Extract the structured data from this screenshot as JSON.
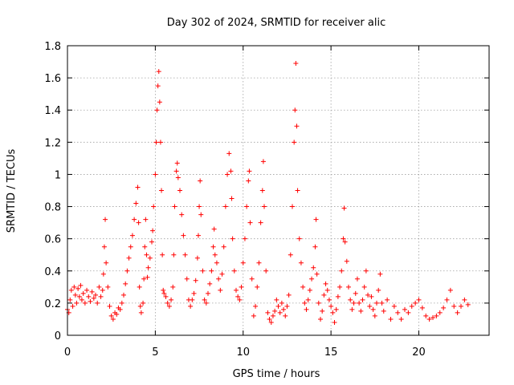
{
  "chart_data": {
    "type": "scatter",
    "title": "Day 302 of 2024, SRMTID for receiver alic",
    "xlabel": "GPS time / hours",
    "ylabel": "SRMTID / TECUs",
    "xlim": [
      0,
      24
    ],
    "ylim": [
      0,
      1.8
    ],
    "xticks": [
      0,
      5,
      10,
      15,
      20
    ],
    "xtick_labels": [
      "0",
      "5",
      "10",
      "15",
      "20"
    ],
    "yticks": [
      0,
      0.2,
      0.4,
      0.6,
      0.8,
      1.0,
      1.2,
      1.4,
      1.6,
      1.8
    ],
    "ytick_labels": [
      "0",
      "0.2",
      "0.4",
      "0.6",
      "0.8",
      "1",
      "1.2",
      "1.4",
      "1.6",
      "1.8"
    ],
    "grid": true,
    "marker": "+",
    "marker_color": "#ff0000",
    "series": [
      {
        "name": "SRMTID",
        "points": [
          [
            0.0,
            0.16
          ],
          [
            0.08,
            0.14
          ],
          [
            0.15,
            0.22
          ],
          [
            0.22,
            0.28
          ],
          [
            0.3,
            0.18
          ],
          [
            0.38,
            0.3
          ],
          [
            0.45,
            0.25
          ],
          [
            0.52,
            0.2
          ],
          [
            0.6,
            0.29
          ],
          [
            0.68,
            0.24
          ],
          [
            0.75,
            0.31
          ],
          [
            0.82,
            0.22
          ],
          [
            0.9,
            0.26
          ],
          [
            1.0,
            0.2
          ],
          [
            1.1,
            0.28
          ],
          [
            1.2,
            0.24
          ],
          [
            1.3,
            0.21
          ],
          [
            1.4,
            0.27
          ],
          [
            1.5,
            0.23
          ],
          [
            1.6,
            0.25
          ],
          [
            1.7,
            0.2
          ],
          [
            1.8,
            0.3
          ],
          [
            1.9,
            0.24
          ],
          [
            2.0,
            0.28
          ],
          [
            2.05,
            0.38
          ],
          [
            2.1,
            0.55
          ],
          [
            2.15,
            0.72
          ],
          [
            2.2,
            0.45
          ],
          [
            2.3,
            0.3
          ],
          [
            2.4,
            0.18
          ],
          [
            2.5,
            0.12
          ],
          [
            2.6,
            0.1
          ],
          [
            2.7,
            0.14
          ],
          [
            2.8,
            0.13
          ],
          [
            2.9,
            0.17
          ],
          [
            3.0,
            0.16
          ],
          [
            3.1,
            0.2
          ],
          [
            3.2,
            0.25
          ],
          [
            3.3,
            0.32
          ],
          [
            3.4,
            0.4
          ],
          [
            3.5,
            0.48
          ],
          [
            3.6,
            0.55
          ],
          [
            3.7,
            0.62
          ],
          [
            3.8,
            0.72
          ],
          [
            3.9,
            0.82
          ],
          [
            4.0,
            0.92
          ],
          [
            4.05,
            0.7
          ],
          [
            4.1,
            0.3
          ],
          [
            4.15,
            0.18
          ],
          [
            4.2,
            0.14
          ],
          [
            4.3,
            0.2
          ],
          [
            4.35,
            0.35
          ],
          [
            4.4,
            0.55
          ],
          [
            4.45,
            0.72
          ],
          [
            4.5,
            0.5
          ],
          [
            4.55,
            0.36
          ],
          [
            4.6,
            0.42
          ],
          [
            4.7,
            0.48
          ],
          [
            4.8,
            0.58
          ],
          [
            4.85,
            0.65
          ],
          [
            4.9,
            0.8
          ],
          [
            5.0,
            1.0
          ],
          [
            5.05,
            1.2
          ],
          [
            5.1,
            1.4
          ],
          [
            5.15,
            1.55
          ],
          [
            5.2,
            1.64
          ],
          [
            5.25,
            1.45
          ],
          [
            5.3,
            1.2
          ],
          [
            5.35,
            0.9
          ],
          [
            5.4,
            0.5
          ],
          [
            5.45,
            0.28
          ],
          [
            5.5,
            0.26
          ],
          [
            5.6,
            0.24
          ],
          [
            5.7,
            0.2
          ],
          [
            5.8,
            0.18
          ],
          [
            5.9,
            0.22
          ],
          [
            6.0,
            0.3
          ],
          [
            6.05,
            0.5
          ],
          [
            6.1,
            0.8
          ],
          [
            6.2,
            1.02
          ],
          [
            6.25,
            1.07
          ],
          [
            6.3,
            0.98
          ],
          [
            6.4,
            0.9
          ],
          [
            6.5,
            0.75
          ],
          [
            6.6,
            0.62
          ],
          [
            6.7,
            0.5
          ],
          [
            6.8,
            0.35
          ],
          [
            6.9,
            0.22
          ],
          [
            7.0,
            0.18
          ],
          [
            7.1,
            0.22
          ],
          [
            7.2,
            0.26
          ],
          [
            7.3,
            0.34
          ],
          [
            7.4,
            0.48
          ],
          [
            7.45,
            0.62
          ],
          [
            7.5,
            0.8
          ],
          [
            7.55,
            0.96
          ],
          [
            7.6,
            0.75
          ],
          [
            7.7,
            0.4
          ],
          [
            7.8,
            0.22
          ],
          [
            7.9,
            0.2
          ],
          [
            8.0,
            0.26
          ],
          [
            8.1,
            0.32
          ],
          [
            8.2,
            0.4
          ],
          [
            8.3,
            0.55
          ],
          [
            8.35,
            0.66
          ],
          [
            8.4,
            0.5
          ],
          [
            8.5,
            0.45
          ],
          [
            8.6,
            0.35
          ],
          [
            8.7,
            0.28
          ],
          [
            8.8,
            0.38
          ],
          [
            8.9,
            0.55
          ],
          [
            9.0,
            0.8
          ],
          [
            9.1,
            1.0
          ],
          [
            9.2,
            1.13
          ],
          [
            9.3,
            1.02
          ],
          [
            9.35,
            0.85
          ],
          [
            9.4,
            0.6
          ],
          [
            9.5,
            0.4
          ],
          [
            9.6,
            0.28
          ],
          [
            9.7,
            0.24
          ],
          [
            9.8,
            0.22
          ],
          [
            9.9,
            0.3
          ],
          [
            10.0,
            0.45
          ],
          [
            10.1,
            0.6
          ],
          [
            10.2,
            0.8
          ],
          [
            10.3,
            0.96
          ],
          [
            10.35,
            1.02
          ],
          [
            10.4,
            0.7
          ],
          [
            10.5,
            0.35
          ],
          [
            10.6,
            0.12
          ],
          [
            10.7,
            0.18
          ],
          [
            10.8,
            0.3
          ],
          [
            10.9,
            0.45
          ],
          [
            11.0,
            0.7
          ],
          [
            11.1,
            0.9
          ],
          [
            11.15,
            1.08
          ],
          [
            11.2,
            0.8
          ],
          [
            11.3,
            0.4
          ],
          [
            11.4,
            0.14
          ],
          [
            11.5,
            0.1
          ],
          [
            11.6,
            0.08
          ],
          [
            11.7,
            0.12
          ],
          [
            11.8,
            0.15
          ],
          [
            11.9,
            0.22
          ],
          [
            12.0,
            0.18
          ],
          [
            12.1,
            0.14
          ],
          [
            12.2,
            0.2
          ],
          [
            12.3,
            0.16
          ],
          [
            12.4,
            0.12
          ],
          [
            12.5,
            0.18
          ],
          [
            12.6,
            0.25
          ],
          [
            12.7,
            0.5
          ],
          [
            12.8,
            0.8
          ],
          [
            12.9,
            1.2
          ],
          [
            12.95,
            1.4
          ],
          [
            13.0,
            1.69
          ],
          [
            13.05,
            1.3
          ],
          [
            13.1,
            0.9
          ],
          [
            13.2,
            0.6
          ],
          [
            13.3,
            0.45
          ],
          [
            13.4,
            0.3
          ],
          [
            13.5,
            0.2
          ],
          [
            13.6,
            0.16
          ],
          [
            13.7,
            0.22
          ],
          [
            13.8,
            0.28
          ],
          [
            13.9,
            0.35
          ],
          [
            14.0,
            0.42
          ],
          [
            14.1,
            0.55
          ],
          [
            14.15,
            0.72
          ],
          [
            14.2,
            0.38
          ],
          [
            14.3,
            0.2
          ],
          [
            14.4,
            0.1
          ],
          [
            14.5,
            0.15
          ],
          [
            14.6,
            0.25
          ],
          [
            14.7,
            0.32
          ],
          [
            14.8,
            0.28
          ],
          [
            14.9,
            0.22
          ],
          [
            15.0,
            0.18
          ],
          [
            15.1,
            0.14
          ],
          [
            15.2,
            0.08
          ],
          [
            15.3,
            0.16
          ],
          [
            15.4,
            0.24
          ],
          [
            15.5,
            0.3
          ],
          [
            15.6,
            0.4
          ],
          [
            15.7,
            0.6
          ],
          [
            15.75,
            0.79
          ],
          [
            15.8,
            0.58
          ],
          [
            15.9,
            0.46
          ],
          [
            16.0,
            0.3
          ],
          [
            16.1,
            0.22
          ],
          [
            16.2,
            0.16
          ],
          [
            16.3,
            0.2
          ],
          [
            16.4,
            0.26
          ],
          [
            16.5,
            0.35
          ],
          [
            16.6,
            0.2
          ],
          [
            16.7,
            0.15
          ],
          [
            16.8,
            0.22
          ],
          [
            16.9,
            0.3
          ],
          [
            17.0,
            0.4
          ],
          [
            17.1,
            0.25
          ],
          [
            17.2,
            0.18
          ],
          [
            17.3,
            0.24
          ],
          [
            17.4,
            0.16
          ],
          [
            17.5,
            0.12
          ],
          [
            17.6,
            0.2
          ],
          [
            17.7,
            0.28
          ],
          [
            17.8,
            0.38
          ],
          [
            17.9,
            0.2
          ],
          [
            18.0,
            0.15
          ],
          [
            18.2,
            0.22
          ],
          [
            18.4,
            0.1
          ],
          [
            18.6,
            0.18
          ],
          [
            18.8,
            0.14
          ],
          [
            19.0,
            0.1
          ],
          [
            19.2,
            0.16
          ],
          [
            19.4,
            0.14
          ],
          [
            19.6,
            0.18
          ],
          [
            19.8,
            0.2
          ],
          [
            20.0,
            0.22
          ],
          [
            20.2,
            0.17
          ],
          [
            20.4,
            0.12
          ],
          [
            20.6,
            0.1
          ],
          [
            20.8,
            0.11
          ],
          [
            21.0,
            0.12
          ],
          [
            21.2,
            0.14
          ],
          [
            21.4,
            0.17
          ],
          [
            21.6,
            0.22
          ],
          [
            21.8,
            0.28
          ],
          [
            22.0,
            0.18
          ],
          [
            22.2,
            0.14
          ],
          [
            22.4,
            0.18
          ],
          [
            22.6,
            0.22
          ],
          [
            22.8,
            0.19
          ]
        ]
      }
    ]
  }
}
